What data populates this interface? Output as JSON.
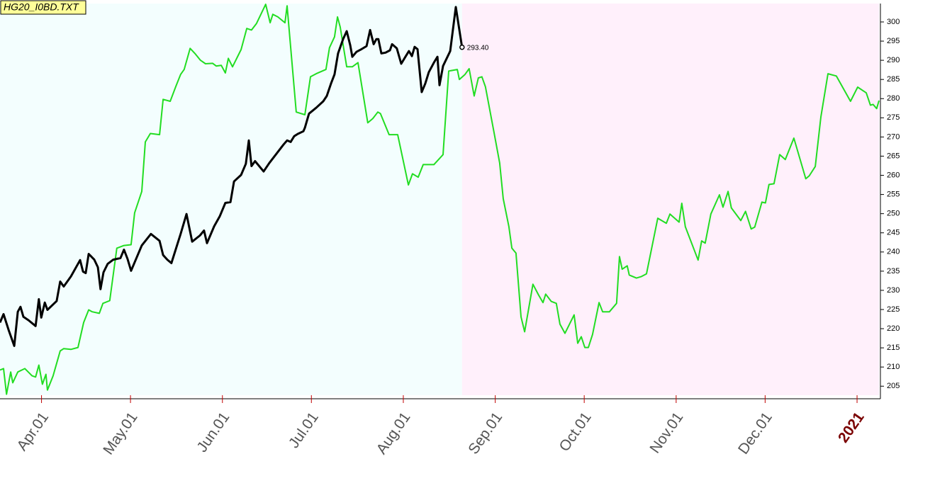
{
  "chart_data": {
    "type": "line",
    "title": "HG20_I0BD.TXT",
    "xlim": [
      0,
      296.4
    ],
    "ylim": [
      203.2,
      304.8
    ],
    "xticks": [
      {
        "value": 14,
        "label": "Apr.01"
      },
      {
        "value": 44,
        "label": "May.01"
      },
      {
        "value": 75,
        "label": "Jun.01"
      },
      {
        "value": 105,
        "label": "Jul.01"
      },
      {
        "value": 136,
        "label": "Aug.01"
      },
      {
        "value": 167,
        "label": "Sep.01"
      },
      {
        "value": 197,
        "label": "Oct.01"
      },
      {
        "value": 228,
        "label": "Nov.01"
      },
      {
        "value": 258,
        "label": "Dec.01"
      },
      {
        "value": 289,
        "label": "2021",
        "bold": true,
        "color": "#7a0000"
      }
    ],
    "yticks": [
      205,
      210,
      215,
      220,
      225,
      230,
      235,
      240,
      245,
      250,
      255,
      260,
      265,
      270,
      275,
      280,
      285,
      290,
      295,
      300
    ],
    "past_background": "#f3fefe",
    "future_background": "#fff0fb",
    "series": [
      {
        "color": "#000000",
        "width": 3,
        "x": [
          0,
          1.2,
          2.9,
          4.8,
          6.0,
          6.9,
          7.9,
          9.6,
          12.0,
          13.1,
          13.9,
          15.1,
          16.0,
          19.1,
          20.3,
          21.5,
          23.9,
          27.0,
          28.0,
          28.9,
          29.9,
          31.8,
          33.0,
          33.9,
          34.9,
          36.3,
          38.2,
          40.6,
          41.8,
          43.0,
          44.2,
          47.8,
          50.9,
          53.8,
          55.0,
          56.4,
          57.8,
          60.9,
          62.9,
          64.8,
          67.4,
          68.8,
          69.8,
          72.2,
          74.1,
          76.0,
          77.7,
          78.9,
          81.3,
          82.9,
          83.9,
          84.8,
          86.0,
          88.9,
          90.8,
          93.2,
          95.6,
          96.8,
          98.0,
          99.2,
          100.4,
          102.3,
          102.8,
          104.2,
          106.6,
          109.0,
          110.2,
          111.6,
          112.8,
          114.0,
          115.7,
          116.9,
          118.1,
          118.8,
          120.2,
          121.9,
          123.6,
          124.8,
          126.0,
          126.9,
          127.6,
          128.6,
          130.0,
          131.5,
          132.2,
          133.8,
          135.3,
          136.7,
          137.9,
          138.9,
          139.8,
          140.8,
          142.2,
          143.4,
          144.6,
          146.3,
          147.5,
          148.2,
          149.4,
          151.8,
          153.7,
          155.8
        ],
        "values": [
          221.6,
          223.8,
          219.7,
          215.5,
          224.4,
          225.7,
          223.1,
          222.2,
          220.7,
          227.7,
          222.9,
          226.8,
          224.9,
          227.2,
          232.3,
          231.0,
          233.6,
          237.9,
          234.9,
          234.5,
          239.5,
          238.0,
          236.0,
          230.3,
          234.7,
          236.9,
          238.0,
          238.4,
          240.6,
          238.2,
          235.1,
          241.7,
          244.7,
          242.9,
          239.2,
          238.0,
          237.1,
          244.7,
          249.9,
          242.7,
          244.3,
          245.6,
          242.3,
          246.7,
          249.3,
          252.8,
          253.0,
          258.4,
          260.1,
          263.0,
          269.1,
          262.4,
          263.7,
          261.0,
          263.2,
          265.6,
          268.0,
          269.1,
          268.7,
          270.2,
          270.8,
          271.5,
          272.4,
          276.1,
          277.6,
          279.3,
          280.7,
          283.9,
          286.3,
          291.8,
          295.5,
          297.6,
          293.9,
          290.9,
          292.2,
          292.9,
          293.7,
          297.9,
          294.2,
          295.5,
          295.5,
          291.8,
          292.0,
          292.6,
          294.2,
          293.1,
          289.1,
          290.9,
          292.4,
          291.1,
          293.5,
          292.9,
          281.7,
          283.9,
          286.9,
          289.4,
          290.9,
          283.5,
          288.5,
          292.4,
          303.9,
          293.4
        ],
        "value_labels": [
          null,
          null,
          null,
          null,
          null,
          null,
          null,
          null,
          null,
          null,
          null,
          null,
          null,
          null,
          null,
          null,
          null,
          null,
          null,
          null,
          null,
          null,
          null,
          null,
          null,
          null,
          null,
          null,
          null,
          null,
          null,
          null,
          null,
          null,
          null,
          null,
          null,
          null,
          null,
          null,
          null,
          null,
          null,
          null,
          null,
          null,
          null,
          null,
          null,
          null,
          null,
          null,
          null,
          null,
          null,
          null,
          null,
          null,
          null,
          null,
          null,
          null,
          null,
          null,
          null,
          null,
          null,
          null,
          null,
          null,
          null,
          null,
          null,
          null,
          null,
          null,
          null,
          null,
          null,
          null,
          null,
          null,
          null,
          null,
          null,
          null,
          null,
          null,
          null,
          null,
          null,
          null,
          null,
          null,
          null,
          null,
          null,
          null,
          null,
          null,
          null,
          "293.40"
        ]
      },
      {
        "color": "#22dd22",
        "width": 2,
        "x": [
          0,
          1.2,
          2.2,
          3.6,
          4.3,
          6.0,
          8.4,
          10.8,
          12.0,
          13.1,
          14.3,
          15.5,
          16.0,
          17.9,
          20.3,
          21.5,
          23.9,
          26.3,
          28.2,
          29.9,
          31.1,
          33.5,
          34.7,
          37.0,
          39.4,
          41.8,
          44.2,
          45.4,
          47.8,
          49.0,
          50.7,
          53.8,
          55.0,
          57.4,
          59.3,
          60.9,
          62.1,
          64.1,
          65.7,
          67.6,
          69.3,
          71.7,
          72.9,
          74.6,
          76.0,
          77.0,
          78.4,
          81.3,
          83.2,
          84.8,
          86.5,
          89.6,
          91.1,
          92.0,
          93.7,
          96.1,
          96.8,
          99.9,
          102.8,
          104.7,
          106.6,
          109.9,
          111.1,
          112.8,
          113.8,
          114.7,
          116.9,
          118.8,
          120.7,
          124.0,
          125.7,
          127.4,
          128.3,
          131.2,
          134.1,
          137.7,
          139.1,
          141.0,
          142.7,
          146.3,
          149.4,
          151.3,
          154.2,
          154.9,
          156.8,
          158.2,
          159.9,
          161.3,
          162.5,
          163.7,
          166.6,
          168.5,
          169.7,
          171.6,
          172.6,
          174.0,
          175.7,
          176.9,
          179.7,
          181.6,
          183.1,
          184.0,
          185.9,
          187.6,
          188.8,
          190.5,
          193.6,
          194.8,
          196.0,
          197.2,
          198.4,
          199.8,
          202.0,
          203.2,
          205.5,
          207.9,
          208.9,
          209.8,
          211.5,
          212.2,
          214.6,
          216.3,
          218.0,
          221.8,
          224.7,
          225.9,
          229.0,
          229.9,
          231.1,
          235.4,
          236.6,
          237.8,
          239.7,
          242.6,
          243.8,
          245.5,
          246.6,
          249.8,
          251.4,
          253.3,
          254.5,
          256.9,
          258.1,
          259.3,
          261.0,
          262.9,
          264.8,
          267.7,
          271.7,
          272.9,
          274.9,
          276.8,
          279.2,
          282.0,
          286.8,
          289.2,
          292.1,
          293.5,
          294.4,
          295.6,
          296.4
        ],
        "values": [
          209.2,
          209.6,
          202.9,
          208.7,
          205.9,
          208.7,
          209.6,
          207.7,
          207.4,
          210.5,
          205.5,
          208.1,
          204.0,
          207.7,
          214.2,
          214.8,
          214.6,
          215.1,
          221.6,
          224.9,
          224.4,
          224.0,
          226.6,
          227.3,
          241.0,
          241.7,
          241.9,
          250.2,
          255.8,
          268.7,
          270.9,
          270.6,
          279.8,
          279.3,
          283.2,
          286.3,
          287.6,
          293.1,
          291.8,
          290.0,
          289.1,
          289.2,
          288.5,
          288.7,
          286.7,
          290.5,
          288.3,
          292.8,
          298.3,
          297.9,
          299.6,
          304.6,
          299.8,
          302.0,
          301.3,
          299.8,
          304.2,
          276.5,
          275.8,
          285.7,
          286.5,
          287.6,
          293.3,
          296.1,
          301.3,
          298.7,
          288.3,
          288.3,
          289.4,
          273.7,
          274.8,
          276.5,
          276.1,
          270.6,
          270.6,
          257.5,
          260.4,
          259.5,
          262.8,
          262.8,
          265.4,
          287.2,
          287.6,
          285.0,
          286.3,
          287.8,
          280.7,
          285.4,
          285.7,
          283.1,
          271.1,
          263.2,
          253.9,
          246.6,
          241.0,
          239.7,
          223.1,
          219.2,
          231.6,
          228.8,
          226.8,
          229.0,
          227.1,
          226.6,
          221.2,
          218.8,
          223.6,
          216.2,
          217.9,
          215.1,
          215.1,
          218.5,
          226.8,
          224.4,
          224.4,
          226.6,
          238.8,
          235.5,
          236.4,
          234.0,
          233.2,
          233.6,
          234.3,
          248.8,
          247.5,
          249.9,
          247.8,
          252.7,
          246.6,
          237.9,
          242.9,
          242.3,
          249.9,
          254.9,
          251.7,
          255.8,
          251.5,
          248.2,
          250.6,
          246.0,
          246.5,
          253.0,
          252.8,
          257.6,
          257.8,
          265.4,
          264.1,
          269.7,
          259.1,
          259.9,
          262.3,
          275.2,
          286.5,
          285.9,
          279.3,
          283.0,
          281.5,
          278.3,
          278.5,
          277.4,
          279.5
        ]
      }
    ]
  }
}
